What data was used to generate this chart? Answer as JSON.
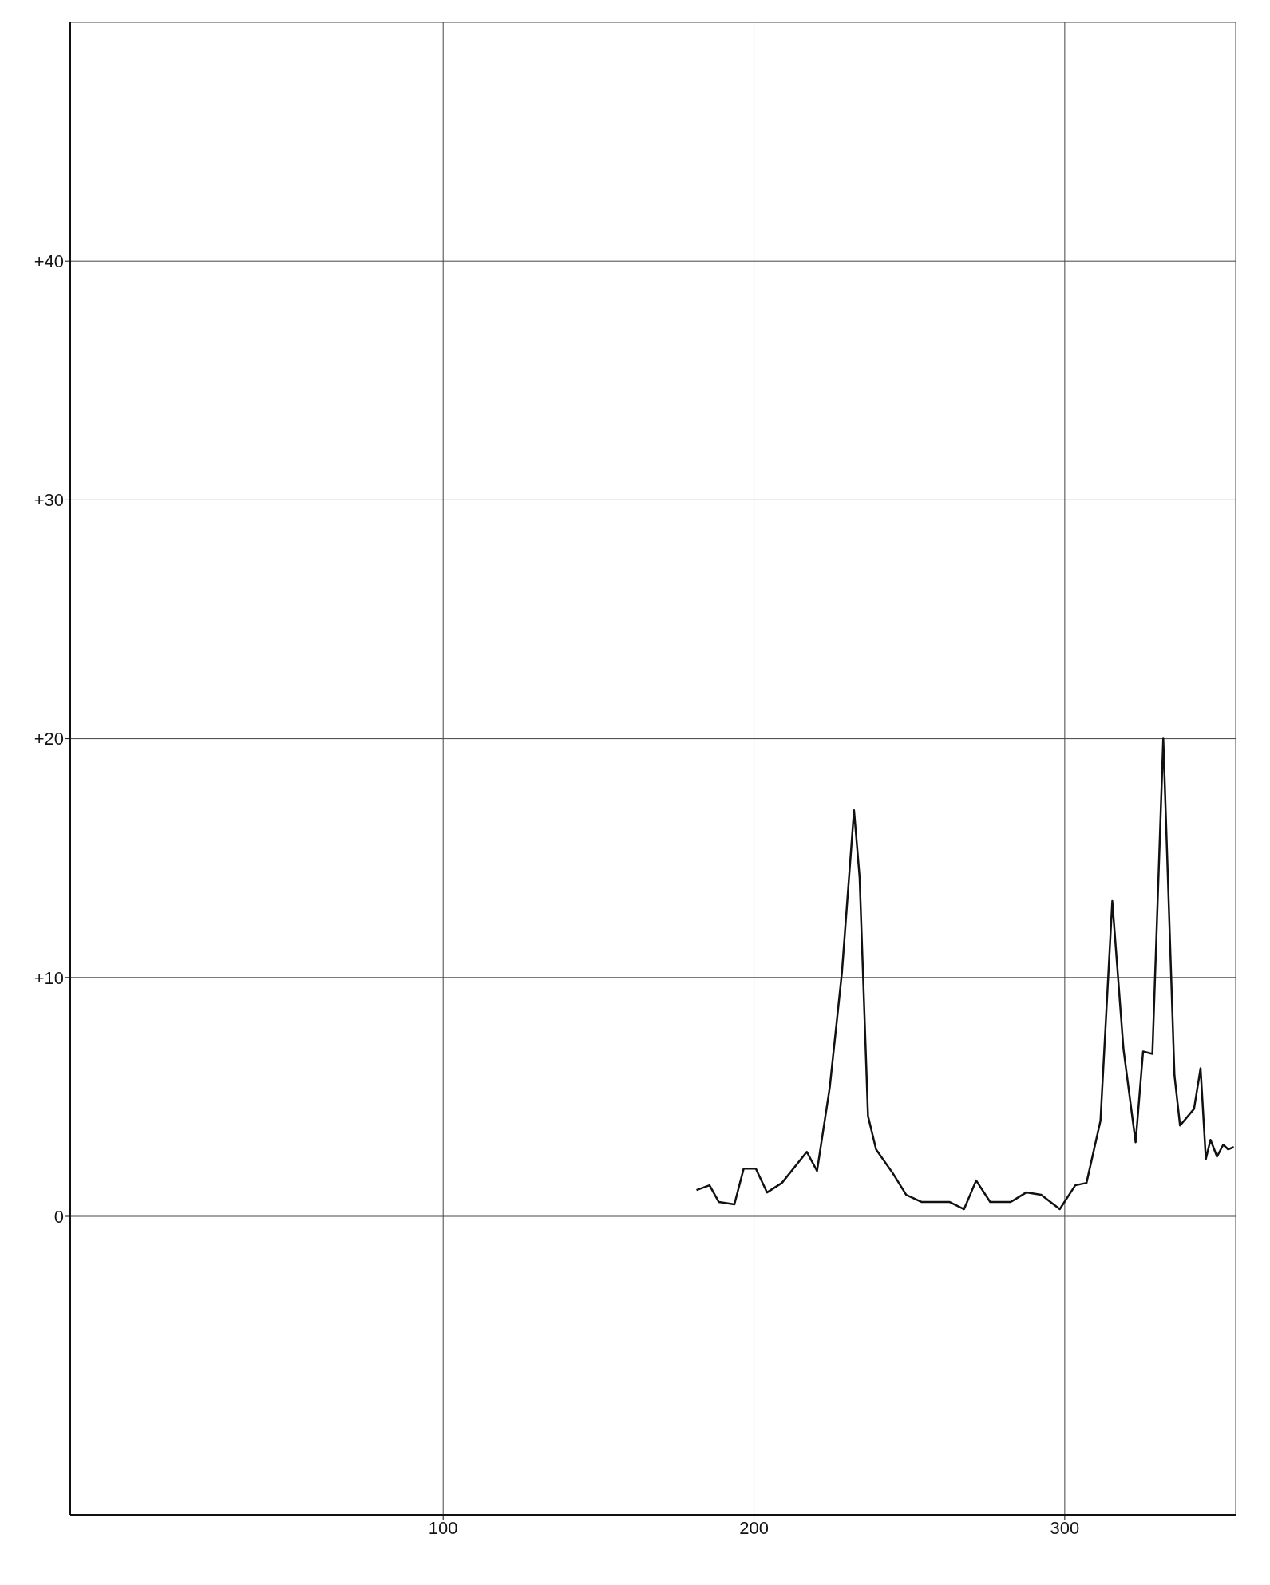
{
  "chart_data": {
    "type": "line",
    "x": [
      181.5,
      185.7,
      188.7,
      193.7,
      196.7,
      200.6,
      204.2,
      209,
      217,
      220.3,
      224.4,
      228.3,
      232.2,
      234,
      236.7,
      239.3,
      244.7,
      249,
      254,
      263,
      267.6,
      271.5,
      276,
      282.6,
      287.6,
      292.4,
      298.4,
      303.4,
      307,
      311.5,
      315.3,
      318.9,
      322.8,
      325.2,
      328.2,
      331.7,
      335.3,
      337.1,
      341.6,
      343.7,
      345.4,
      346.9,
      349,
      351,
      352.6,
      354.4
    ],
    "series": [
      {
        "color": "#111111",
        "values": [
          1.1,
          1.3,
          0.6,
          0.5,
          2.0,
          2.0,
          1.0,
          1.4,
          2.7,
          1.9,
          5.4,
          10.2,
          17.0,
          14.2,
          4.2,
          2.8,
          1.8,
          0.9,
          0.6,
          0.6,
          0.3,
          1.5,
          0.6,
          0.6,
          1.0,
          0.9,
          0.3,
          1.3,
          1.4,
          4.0,
          13.2,
          7.0,
          3.1,
          6.9,
          6.8,
          20.0,
          5.9,
          3.8,
          4.5,
          6.2,
          2.4,
          3.2,
          2.5,
          3.0,
          2.8,
          2.9
        ]
      }
    ],
    "xlim": [
      -20,
      355
    ],
    "xticks": [
      100,
      200,
      300
    ],
    "ylim": [
      -12.5,
      50
    ],
    "yticks": [
      {
        "value": 0,
        "label": "0"
      },
      {
        "value": 10,
        "label": "+10"
      },
      {
        "value": 20,
        "label": "+20"
      },
      {
        "value": 30,
        "label": "+30"
      },
      {
        "value": 40,
        "label": "+40"
      }
    ],
    "grid": true,
    "marker": "none",
    "line_style": "solid",
    "legend": false
  }
}
